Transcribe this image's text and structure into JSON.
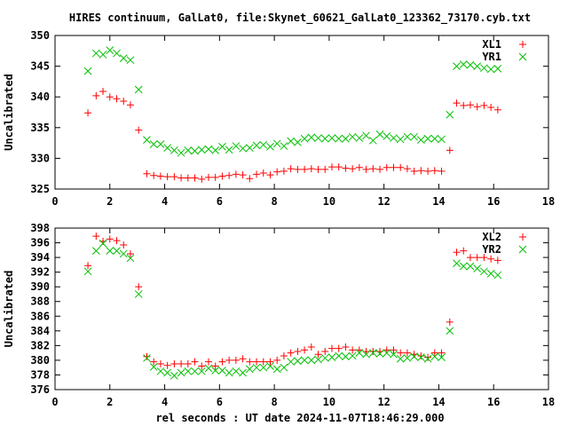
{
  "title": "HIRES continuum, GalLat0, file:Skynet_60621_GalLat0_123362_73170.cyb.txt",
  "xlabel": "rel seconds : UT date 2024-11-07T18:46:29.000",
  "chart_data": [
    {
      "type": "scatter",
      "title": "HIRES continuum, GalLat0, file:Skynet_60621_GalLat0_123362_73170.cyb.txt",
      "xlabel": "",
      "ylabel": "Uncalibrated",
      "xlim": [
        0,
        18
      ],
      "ylim": [
        325,
        350
      ],
      "xticks": [
        0,
        2,
        4,
        6,
        8,
        10,
        12,
        14,
        16,
        18
      ],
      "yticks": [
        325,
        330,
        335,
        340,
        345,
        350
      ],
      "grid": false,
      "legend": "top-right",
      "series": [
        {
          "name": "XL1",
          "marker": "+",
          "color": "#ff0000",
          "x": [
            1.2,
            1.5,
            1.75,
            2.0,
            2.25,
            2.5,
            2.75,
            3.05,
            3.35,
            3.6,
            3.85,
            4.1,
            4.35,
            4.6,
            4.85,
            5.1,
            5.35,
            5.6,
            5.85,
            6.1,
            6.35,
            6.6,
            6.85,
            7.1,
            7.35,
            7.6,
            7.85,
            8.1,
            8.35,
            8.6,
            8.85,
            9.1,
            9.35,
            9.6,
            9.85,
            10.1,
            10.35,
            10.6,
            10.85,
            11.1,
            11.35,
            11.6,
            11.85,
            12.1,
            12.35,
            12.6,
            12.85,
            13.1,
            13.35,
            13.6,
            13.85,
            14.1,
            14.4,
            14.65,
            14.9,
            15.15,
            15.4,
            15.65,
            15.9,
            16.15
          ],
          "y": [
            337.4,
            340.2,
            340.9,
            340.0,
            339.7,
            339.3,
            338.7,
            334.6,
            327.5,
            327.2,
            327.1,
            327.0,
            327.0,
            326.8,
            326.8,
            326.8,
            326.6,
            326.9,
            326.9,
            327.1,
            327.2,
            327.4,
            327.3,
            326.7,
            327.4,
            327.6,
            327.3,
            327.8,
            327.9,
            328.3,
            328.2,
            328.2,
            328.3,
            328.2,
            328.2,
            328.6,
            328.6,
            328.4,
            328.3,
            328.5,
            328.2,
            328.3,
            328.2,
            328.5,
            328.5,
            328.5,
            328.3,
            327.9,
            328.0,
            327.9,
            328.0,
            327.9,
            331.3,
            339.0,
            338.6,
            338.7,
            338.4,
            338.6,
            338.3,
            337.9
          ]
        },
        {
          "name": "YR1",
          "marker": "x",
          "color": "#00c000",
          "x": [
            1.2,
            1.5,
            1.75,
            2.0,
            2.25,
            2.5,
            2.75,
            3.05,
            3.35,
            3.6,
            3.85,
            4.1,
            4.35,
            4.6,
            4.85,
            5.1,
            5.35,
            5.6,
            5.85,
            6.1,
            6.35,
            6.6,
            6.85,
            7.1,
            7.35,
            7.6,
            7.85,
            8.1,
            8.35,
            8.6,
            8.85,
            9.1,
            9.35,
            9.6,
            9.85,
            10.1,
            10.35,
            10.6,
            10.85,
            11.1,
            11.35,
            11.6,
            11.85,
            12.1,
            12.35,
            12.6,
            12.85,
            13.1,
            13.35,
            13.6,
            13.85,
            14.1,
            14.4,
            14.65,
            14.9,
            15.15,
            15.4,
            15.65,
            15.9,
            16.15
          ],
          "y": [
            344.2,
            347.1,
            346.9,
            347.6,
            347.1,
            346.3,
            346.0,
            341.2,
            333.0,
            332.3,
            332.3,
            331.7,
            331.3,
            330.9,
            331.3,
            331.2,
            331.4,
            331.5,
            331.3,
            331.9,
            331.4,
            332.0,
            331.6,
            331.7,
            332.1,
            332.2,
            331.9,
            332.4,
            332.0,
            332.8,
            332.6,
            333.2,
            333.4,
            333.3,
            333.2,
            333.3,
            333.2,
            333.2,
            333.5,
            333.3,
            333.7,
            332.9,
            333.9,
            333.6,
            333.3,
            333.1,
            333.5,
            333.5,
            333.0,
            333.2,
            333.2,
            333.1,
            337.1,
            345.0,
            345.3,
            345.2,
            345.0,
            344.7,
            344.5,
            344.6
          ]
        }
      ]
    },
    {
      "type": "scatter",
      "title": "",
      "xlabel": "rel seconds : UT date 2024-11-07T18:46:29.000",
      "ylabel": "Uncalibrated",
      "xlim": [
        0,
        18
      ],
      "ylim": [
        376,
        398
      ],
      "xticks": [
        0,
        2,
        4,
        6,
        8,
        10,
        12,
        14,
        16,
        18
      ],
      "yticks": [
        376,
        378,
        380,
        382,
        384,
        386,
        388,
        390,
        392,
        394,
        396,
        398
      ],
      "grid": false,
      "legend": "top-right",
      "series": [
        {
          "name": "XL2",
          "marker": "+",
          "color": "#ff0000",
          "x": [
            1.2,
            1.5,
            1.75,
            2.0,
            2.25,
            2.5,
            2.75,
            3.05,
            3.35,
            3.6,
            3.85,
            4.1,
            4.35,
            4.6,
            4.85,
            5.1,
            5.35,
            5.6,
            5.85,
            6.1,
            6.35,
            6.6,
            6.85,
            7.1,
            7.35,
            7.6,
            7.85,
            8.1,
            8.35,
            8.6,
            8.85,
            9.1,
            9.35,
            9.6,
            9.85,
            10.1,
            10.35,
            10.6,
            10.85,
            11.1,
            11.35,
            11.6,
            11.85,
            12.1,
            12.35,
            12.6,
            12.85,
            13.1,
            13.35,
            13.6,
            13.85,
            14.1,
            14.4,
            14.65,
            14.9,
            15.15,
            15.4,
            15.65,
            15.9,
            16.15
          ],
          "y": [
            392.9,
            396.9,
            396.2,
            396.5,
            396.3,
            395.7,
            394.5,
            390.0,
            380.5,
            379.8,
            379.5,
            379.3,
            379.5,
            379.5,
            379.5,
            379.8,
            379.2,
            379.8,
            379.2,
            379.8,
            380.0,
            380.0,
            380.2,
            379.8,
            379.8,
            379.8,
            379.8,
            380.0,
            380.6,
            381.0,
            381.2,
            381.4,
            381.8,
            380.8,
            381.2,
            381.6,
            381.6,
            381.8,
            381.4,
            381.4,
            381.2,
            381.2,
            381.2,
            381.4,
            381.4,
            381.0,
            381.0,
            380.8,
            380.6,
            380.4,
            381.0,
            381.0,
            385.2,
            394.7,
            394.9,
            394.0,
            394.0,
            394.0,
            393.8,
            393.6
          ]
        },
        {
          "name": "YR2",
          "marker": "x",
          "color": "#00c000",
          "x": [
            1.2,
            1.5,
            1.75,
            2.0,
            2.25,
            2.5,
            2.75,
            3.05,
            3.35,
            3.6,
            3.85,
            4.1,
            4.35,
            4.6,
            4.85,
            5.1,
            5.35,
            5.6,
            5.85,
            6.1,
            6.35,
            6.6,
            6.85,
            7.1,
            7.35,
            7.6,
            7.85,
            8.1,
            8.35,
            8.6,
            8.85,
            9.1,
            9.35,
            9.6,
            9.85,
            10.1,
            10.35,
            10.6,
            10.85,
            11.1,
            11.35,
            11.6,
            11.85,
            12.1,
            12.35,
            12.6,
            12.85,
            13.1,
            13.35,
            13.6,
            13.85,
            14.1,
            14.4,
            14.65,
            14.9,
            15.15,
            15.4,
            15.65,
            15.9,
            16.15
          ],
          "y": [
            392.1,
            394.9,
            395.9,
            394.9,
            394.9,
            394.5,
            393.9,
            389.0,
            380.3,
            379.1,
            378.5,
            378.3,
            377.9,
            378.3,
            378.5,
            378.5,
            378.5,
            378.9,
            378.6,
            378.6,
            378.3,
            378.5,
            378.3,
            378.8,
            379.0,
            379.0,
            379.2,
            378.8,
            379.0,
            379.8,
            379.9,
            380.0,
            380.0,
            380.1,
            380.3,
            380.4,
            380.6,
            380.5,
            380.6,
            381.0,
            380.8,
            381.0,
            380.9,
            381.0,
            380.8,
            380.2,
            380.3,
            380.5,
            380.4,
            380.2,
            380.5,
            380.4,
            384.0,
            393.2,
            392.8,
            392.8,
            392.5,
            392.1,
            391.8,
            391.6
          ]
        }
      ]
    }
  ]
}
